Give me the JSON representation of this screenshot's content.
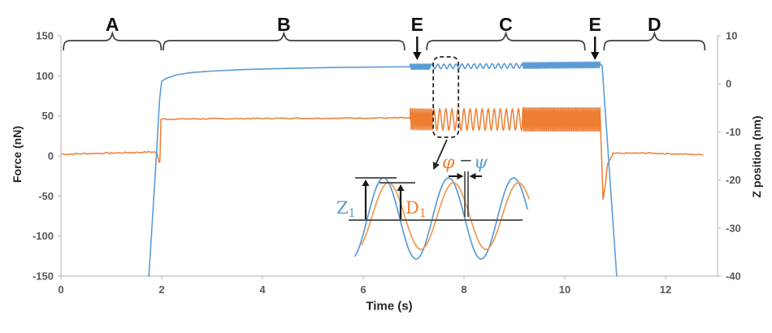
{
  "chart_data": {
    "type": "line",
    "title": "",
    "xlabel": "Time (s)",
    "ylabel": "Force (nN)",
    "ylabel2": "Z position (nm)",
    "x_ticks": [
      0,
      2,
      4,
      6,
      8,
      10,
      12
    ],
    "xlim": [
      0,
      13.03
    ],
    "left_ticks": [
      150,
      100,
      50,
      0,
      -50,
      -100,
      -150
    ],
    "left_lim": [
      -150,
      150
    ],
    "right_ticks": [
      10,
      0,
      -10,
      -20,
      -30,
      -40
    ],
    "right_lim": [
      -40,
      10
    ],
    "grid": false,
    "legend": "none",
    "axis_line_color": "#BFBFBF",
    "tick_label_color": "#595959",
    "series": [
      {
        "name": "force",
        "label": "Force",
        "color": "#ED7D31",
        "axis": "left",
        "width": 1.5,
        "segments": [
          {
            "kind": "noisy",
            "noise": 0.8,
            "points": [
              [
                0.02,
                2.2
              ],
              [
                1.0,
                3.6
              ],
              [
                1.85,
                5.0
              ]
            ]
          },
          {
            "kind": "line",
            "points": [
              [
                1.85,
                5.0
              ],
              [
                1.91,
                3.5
              ],
              [
                1.945,
                -8.0
              ],
              [
                1.965,
                -7.0
              ],
              [
                1.985,
                46.0
              ]
            ]
          },
          {
            "kind": "noisy",
            "noise": 0.7,
            "points": [
              [
                1.985,
                46.0
              ],
              [
                4.5,
                47.0
              ],
              [
                6.93,
                47.5
              ]
            ]
          },
          {
            "kind": "osc",
            "t0": 6.93,
            "t1": 7.37,
            "c0": 46,
            "c1": 45.5,
            "a0": 13,
            "a1": 13,
            "period": 0.032
          },
          {
            "kind": "osc",
            "t0": 7.37,
            "t1": 9.16,
            "c0": 45.5,
            "c1": 45.5,
            "a0": 13.5,
            "a1": 13.5,
            "period": 0.12
          },
          {
            "kind": "osc",
            "t0": 9.16,
            "t1": 10.71,
            "c0": 45.5,
            "c1": 45.5,
            "a0": 14.5,
            "a1": 14.5,
            "period": 0.03
          },
          {
            "kind": "line",
            "points": [
              [
                10.71,
                38
              ],
              [
                10.74,
                -20
              ],
              [
                10.76,
                -54
              ],
              [
                10.8,
                -38
              ],
              [
                10.85,
                -10
              ],
              [
                10.95,
                1.5
              ]
            ]
          },
          {
            "kind": "noisy",
            "noise": 0.7,
            "points": [
              [
                10.95,
                3.2
              ],
              [
                11.6,
                3.6
              ],
              [
                12.74,
                1.6
              ]
            ]
          }
        ]
      },
      {
        "name": "z-position",
        "label": "Z position",
        "color": "#5B9BD5",
        "axis": "right",
        "width": 1.6,
        "segments": [
          {
            "kind": "line",
            "points": [
              [
                1.745,
                -40
              ],
              [
                1.9,
                -14
              ],
              [
                1.96,
                -3
              ],
              [
                2.0,
                0.5
              ],
              [
                2.08,
                1.1
              ]
            ]
          },
          {
            "kind": "line",
            "points": [
              [
                2.08,
                1.1
              ],
              [
                2.3,
                1.9
              ],
              [
                2.6,
                2.35
              ],
              [
                3.0,
                2.65
              ],
              [
                3.6,
                2.95
              ],
              [
                4.4,
                3.2
              ],
              [
                5.4,
                3.4
              ],
              [
                6.93,
                3.55
              ]
            ]
          },
          {
            "kind": "osc",
            "t0": 6.93,
            "t1": 7.33,
            "c0": 3.55,
            "c1": 3.55,
            "a0": 0.55,
            "a1": 0.55,
            "period": 0.03
          },
          {
            "kind": "osc",
            "t0": 7.33,
            "t1": 9.16,
            "c0": 3.6,
            "c1": 3.75,
            "a0": 0.5,
            "a1": 0.5,
            "period": 0.12
          },
          {
            "kind": "osc",
            "t0": 9.16,
            "t1": 10.7,
            "c0": 3.8,
            "c1": 3.95,
            "a0": 0.6,
            "a1": 0.6,
            "period": 0.03
          },
          {
            "kind": "line",
            "points": [
              [
                10.7,
                3.95
              ],
              [
                10.74,
                3.85
              ],
              [
                11.03,
                -40
              ]
            ]
          }
        ]
      }
    ],
    "annotations": {
      "letter_color": "#111111",
      "brace_color": "#3d3d3d",
      "braces": [
        {
          "label": "A",
          "t1": 0.05,
          "t2": 1.99
        },
        {
          "label": "B",
          "t1": 2.03,
          "t2": 6.82
        },
        {
          "label": "C",
          "t1": 7.26,
          "t2": 10.4
        },
        {
          "label": "D",
          "t1": 10.78,
          "t2": 12.78
        }
      ],
      "event_arrows": [
        {
          "label": "E",
          "t": 7.07
        },
        {
          "label": "E",
          "t": 10.6
        }
      ],
      "dashed_box": {
        "t1": 7.39,
        "t2": 7.89,
        "y1": 70,
        "y2": 169
      },
      "connector": {
        "x1": 550,
        "y1": 172,
        "x2": 536,
        "y2": 203
      }
    },
    "inset": {
      "line_color": "#595959",
      "arrow_color": "#1a1a1a",
      "baseline": {
        "x1": 429,
        "x2": 643,
        "y": 271
      },
      "peak_lines": [
        {
          "x1": 437,
          "x2": 488,
          "y": 219
        },
        {
          "x1": 467,
          "x2": 511,
          "y": 225
        }
      ],
      "amp_arrows": [
        {
          "x": 450,
          "y_from": 270,
          "y_to": 221
        },
        {
          "x": 493,
          "y_from": 270,
          "y_to": 227
        }
      ],
      "labels": [
        {
          "text": "Z",
          "sub": "1",
          "color": "#5B9BD5",
          "x": 414,
          "y": 263
        },
        {
          "text": "D",
          "sub": "1",
          "color": "#ED7D31",
          "x": 499,
          "y": 263
        }
      ],
      "waves": [
        {
          "color": "#5B9BD5",
          "x1": 437,
          "x2": 650,
          "center": 269,
          "amp": 50,
          "period": 80,
          "x0": 452
        },
        {
          "color": "#F09A50",
          "x1": 445,
          "x2": 652,
          "center": 266,
          "amp": 41,
          "period": 80,
          "x0": 458
        }
      ],
      "phase_marker": {
        "xa": 572,
        "xb": 576,
        "y1": 211,
        "y2": 267,
        "arrow_y": 217,
        "left_tail": 552,
        "right_tail": 593
      },
      "phase_label": {
        "phi": "φ",
        "minus": "−",
        "psi": "ψ",
        "phi_color": "#ED7D31",
        "psi_color": "#5B9BD5",
        "minus_color": "#404040",
        "x_phi": 544,
        "x_minus": 565,
        "x_psi": 583,
        "y": 207
      }
    }
  }
}
